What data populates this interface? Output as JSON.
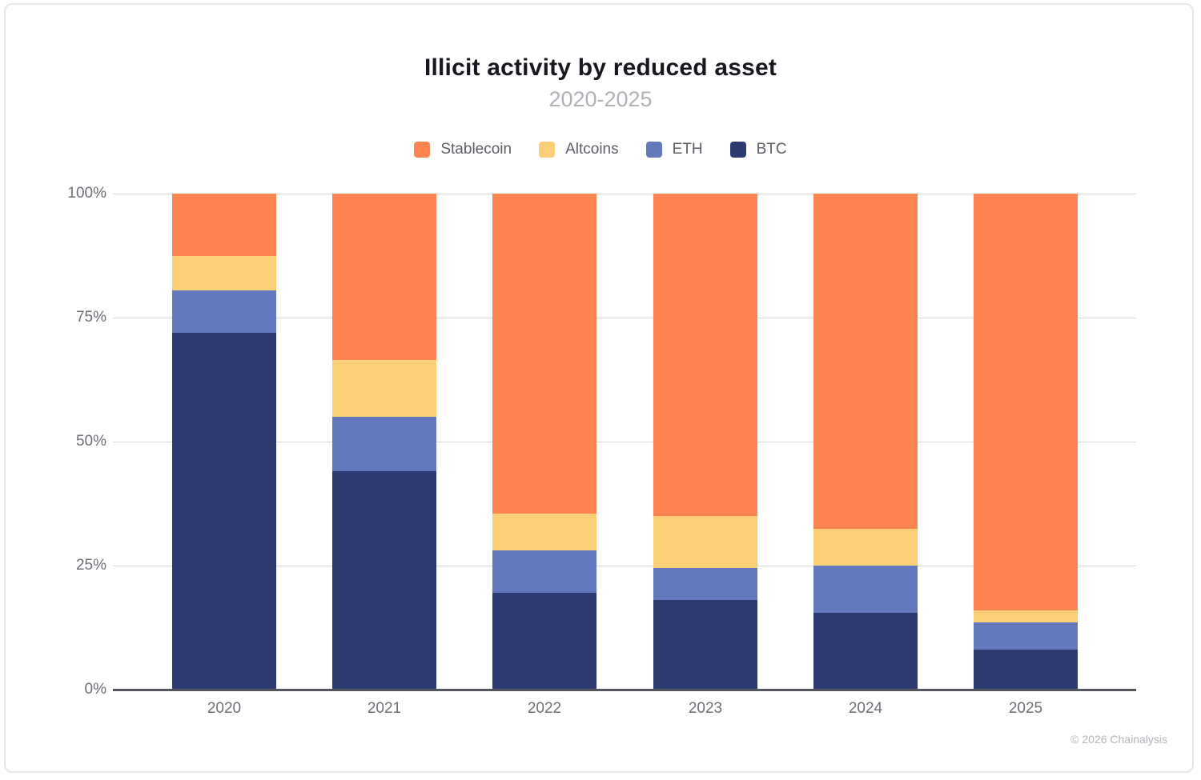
{
  "chart_data": {
    "type": "bar",
    "stacked": true,
    "title": "Illicit activity by reduced asset",
    "subtitle": "2020-2025",
    "categories": [
      "2020",
      "2021",
      "2022",
      "2023",
      "2024",
      "2025"
    ],
    "series": [
      {
        "name": "Stablecoin",
        "color": "#FB8450",
        "values": [
          12.5,
          33.5,
          64.5,
          65,
          67.5,
          84
        ]
      },
      {
        "name": "Altcoins",
        "color": "#FBCF75",
        "values": [
          7,
          11.5,
          7.5,
          10.5,
          7.5,
          2.5
        ]
      },
      {
        "name": "ETH",
        "color": "#6379BD",
        "values": [
          8.5,
          11,
          8.5,
          6.5,
          9.5,
          5.5
        ]
      },
      {
        "name": "BTC",
        "color": "#2B3A70",
        "values": [
          72,
          44,
          19.5,
          18,
          15.5,
          8
        ]
      }
    ],
    "stack_order_bottom_up": [
      "BTC",
      "ETH",
      "Altcoins",
      "Stablecoin"
    ],
    "y_ticks": [
      {
        "value": 0,
        "label": "0%"
      },
      {
        "value": 25,
        "label": "25%"
      },
      {
        "value": 50,
        "label": "50%"
      },
      {
        "value": 75,
        "label": "75%"
      },
      {
        "value": 100,
        "label": "100%"
      }
    ],
    "ylim": [
      0,
      100
    ],
    "xlabel": "",
    "ylabel": "",
    "grid": true,
    "legend_position": "top",
    "colors": {
      "grid": "#dadade",
      "axis": "#55565c",
      "title_text": "#17171f",
      "subtitle_text": "#b1b1b9",
      "tick_text": "#6f6f78",
      "legend_text": "#5d5d66",
      "footer_text": "#b5b5bc"
    },
    "footer": "© 2026 Chainalysis"
  }
}
